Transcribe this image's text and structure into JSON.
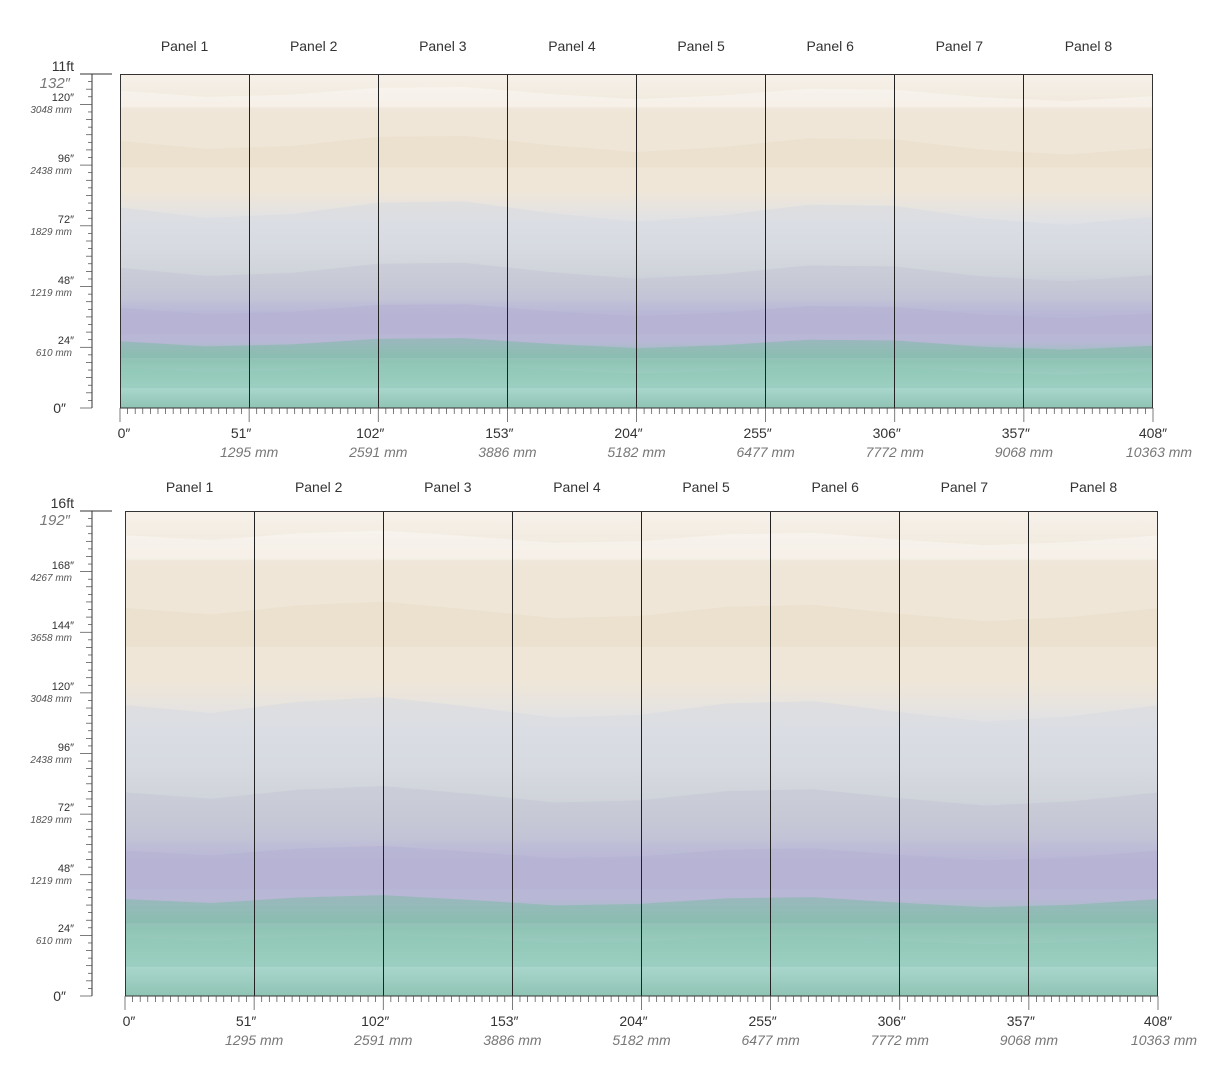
{
  "diagrams": [
    {
      "height_ft": "11ft",
      "top_in": "132″",
      "height_value_in": 132,
      "panels": [
        "Panel 1",
        "Panel 2",
        "Panel 3",
        "Panel 4",
        "Panel 5",
        "Panel 6",
        "Panel 7",
        "Panel 8"
      ],
      "y_ticks": [
        {
          "in": "120″",
          "mm": "3048 mm",
          "value": 120
        },
        {
          "in": "96″",
          "mm": "2438 mm",
          "value": 96
        },
        {
          "in": "72″",
          "mm": "1829 mm",
          "value": 72
        },
        {
          "in": "48″",
          "mm": "1219 mm",
          "value": 48
        },
        {
          "in": "24″",
          "mm": "610 mm",
          "value": 24
        }
      ],
      "y_zero": "0″",
      "x_ticks": [
        {
          "in": "0″",
          "mm": "",
          "value": 0
        },
        {
          "in": "51″",
          "mm": "1295 mm",
          "value": 51
        },
        {
          "in": "102″",
          "mm": "2591 mm",
          "value": 102
        },
        {
          "in": "153″",
          "mm": "3886 mm",
          "value": 153
        },
        {
          "in": "204″",
          "mm": "5182 mm",
          "value": 204
        },
        {
          "in": "255″",
          "mm": "6477 mm",
          "value": 255
        },
        {
          "in": "306″",
          "mm": "7772 mm",
          "value": 306
        },
        {
          "in": "357″",
          "mm": "9068 mm",
          "value": 357
        },
        {
          "in": "408″",
          "mm": "10363 mm",
          "value": 408
        }
      ]
    },
    {
      "height_ft": "16ft",
      "top_in": "192″",
      "height_value_in": 192,
      "panels": [
        "Panel 1",
        "Panel 2",
        "Panel 3",
        "Panel 4",
        "Panel 5",
        "Panel 6",
        "Panel 7",
        "Panel 8"
      ],
      "y_ticks": [
        {
          "in": "168″",
          "mm": "4267 mm",
          "value": 168
        },
        {
          "in": "144″",
          "mm": "3658 mm",
          "value": 144
        },
        {
          "in": "120″",
          "mm": "3048 mm",
          "value": 120
        },
        {
          "in": "96″",
          "mm": "2438 mm",
          "value": 96
        },
        {
          "in": "72″",
          "mm": "1829 mm",
          "value": 72
        },
        {
          "in": "48″",
          "mm": "1219 mm",
          "value": 48
        },
        {
          "in": "24″",
          "mm": "610 mm",
          "value": 24
        }
      ],
      "y_zero": "0″",
      "x_ticks": [
        {
          "in": "0″",
          "mm": "",
          "value": 0
        },
        {
          "in": "51″",
          "mm": "1295 mm",
          "value": 51
        },
        {
          "in": "102″",
          "mm": "2591 mm",
          "value": 102
        },
        {
          "in": "153″",
          "mm": "3886 mm",
          "value": 153
        },
        {
          "in": "204″",
          "mm": "5182 mm",
          "value": 204
        },
        {
          "in": "255″",
          "mm": "6477 mm",
          "value": 255
        },
        {
          "in": "306″",
          "mm": "7772 mm",
          "value": 306
        },
        {
          "in": "357″",
          "mm": "9068 mm",
          "value": 357
        },
        {
          "in": "408″",
          "mm": "10363 mm",
          "value": 408
        }
      ]
    }
  ],
  "colors": {
    "sand": "#efe6d8",
    "cream": "#f6f1ea",
    "mist": "#dfe1e6",
    "grey": "#cfd3da",
    "lavender": "#b9b7d6",
    "teal": "#8fc4b4",
    "teal_light": "#a9d6cc"
  }
}
